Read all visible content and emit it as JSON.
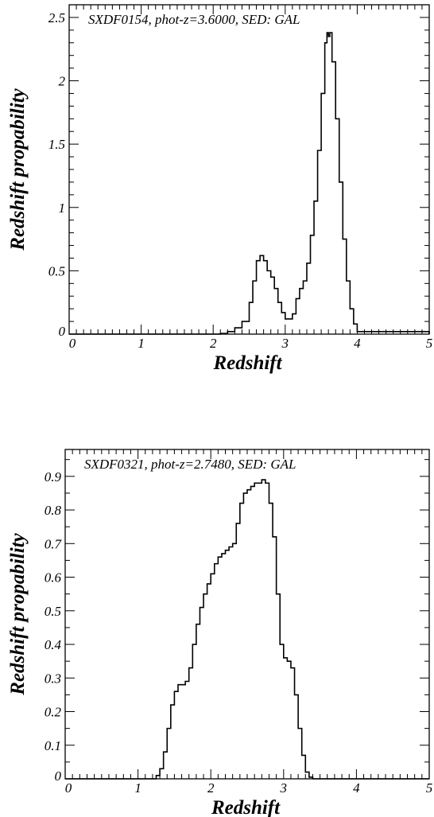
{
  "chart_data": [
    {
      "type": "line",
      "title": "SXDF0154, phot-z=3.6000, SED: GAL",
      "xlabel": "Redshift",
      "ylabel": "Redshift propability",
      "xlim": [
        0,
        5
      ],
      "ylim": [
        0,
        2.6
      ],
      "xticks": [
        0,
        1,
        2,
        3,
        4,
        5
      ],
      "yticks": [
        0,
        0.5,
        1,
        1.5,
        2,
        2.5
      ],
      "x": [
        0,
        2.0,
        2.1,
        2.2,
        2.3,
        2.4,
        2.5,
        2.55,
        2.6,
        2.65,
        2.7,
        2.75,
        2.8,
        2.85,
        2.9,
        2.95,
        3.0,
        3.05,
        3.1,
        3.15,
        3.2,
        3.25,
        3.3,
        3.35,
        3.4,
        3.45,
        3.5,
        3.55,
        3.58,
        3.6,
        3.62,
        3.65,
        3.7,
        3.75,
        3.8,
        3.85,
        3.9,
        3.95,
        4.0,
        5.0
      ],
      "y": [
        0,
        0,
        0.005,
        0.02,
        0.05,
        0.1,
        0.25,
        0.42,
        0.58,
        0.62,
        0.58,
        0.5,
        0.45,
        0.36,
        0.25,
        0.17,
        0.12,
        0.12,
        0.16,
        0.28,
        0.36,
        0.42,
        0.56,
        0.78,
        1.05,
        1.45,
        1.9,
        2.3,
        2.38,
        2.35,
        2.38,
        2.15,
        1.7,
        1.2,
        0.75,
        0.42,
        0.2,
        0.08,
        0.02,
        0
      ]
    },
    {
      "type": "line",
      "title": "SXDF0321, phot-z=2.7480, SED: GAL",
      "xlabel": "Redshift",
      "ylabel": "Redshift propability",
      "xlim": [
        0,
        5
      ],
      "ylim": [
        0,
        0.98
      ],
      "xticks": [
        0,
        1,
        2,
        3,
        4,
        5
      ],
      "yticks": [
        0,
        0.1,
        0.2,
        0.3,
        0.4,
        0.5,
        0.6,
        0.7,
        0.8,
        0.9
      ],
      "x": [
        0,
        1.2,
        1.25,
        1.3,
        1.35,
        1.4,
        1.45,
        1.5,
        1.55,
        1.6,
        1.65,
        1.7,
        1.75,
        1.8,
        1.85,
        1.9,
        1.95,
        2.0,
        2.05,
        2.1,
        2.15,
        2.2,
        2.25,
        2.3,
        2.35,
        2.4,
        2.45,
        2.5,
        2.55,
        2.6,
        2.65,
        2.7,
        2.75,
        2.8,
        2.85,
        2.9,
        2.95,
        3.0,
        3.05,
        3.1,
        3.15,
        3.2,
        3.25,
        3.3,
        3.35,
        3.4,
        5.0
      ],
      "y": [
        0,
        0,
        0.01,
        0.03,
        0.08,
        0.15,
        0.22,
        0.26,
        0.28,
        0.28,
        0.29,
        0.33,
        0.4,
        0.46,
        0.51,
        0.55,
        0.58,
        0.61,
        0.64,
        0.66,
        0.67,
        0.68,
        0.69,
        0.7,
        0.76,
        0.82,
        0.85,
        0.86,
        0.87,
        0.88,
        0.88,
        0.89,
        0.88,
        0.82,
        0.72,
        0.55,
        0.4,
        0.36,
        0.35,
        0.33,
        0.25,
        0.15,
        0.07,
        0.02,
        0.005,
        0,
        0
      ]
    }
  ]
}
